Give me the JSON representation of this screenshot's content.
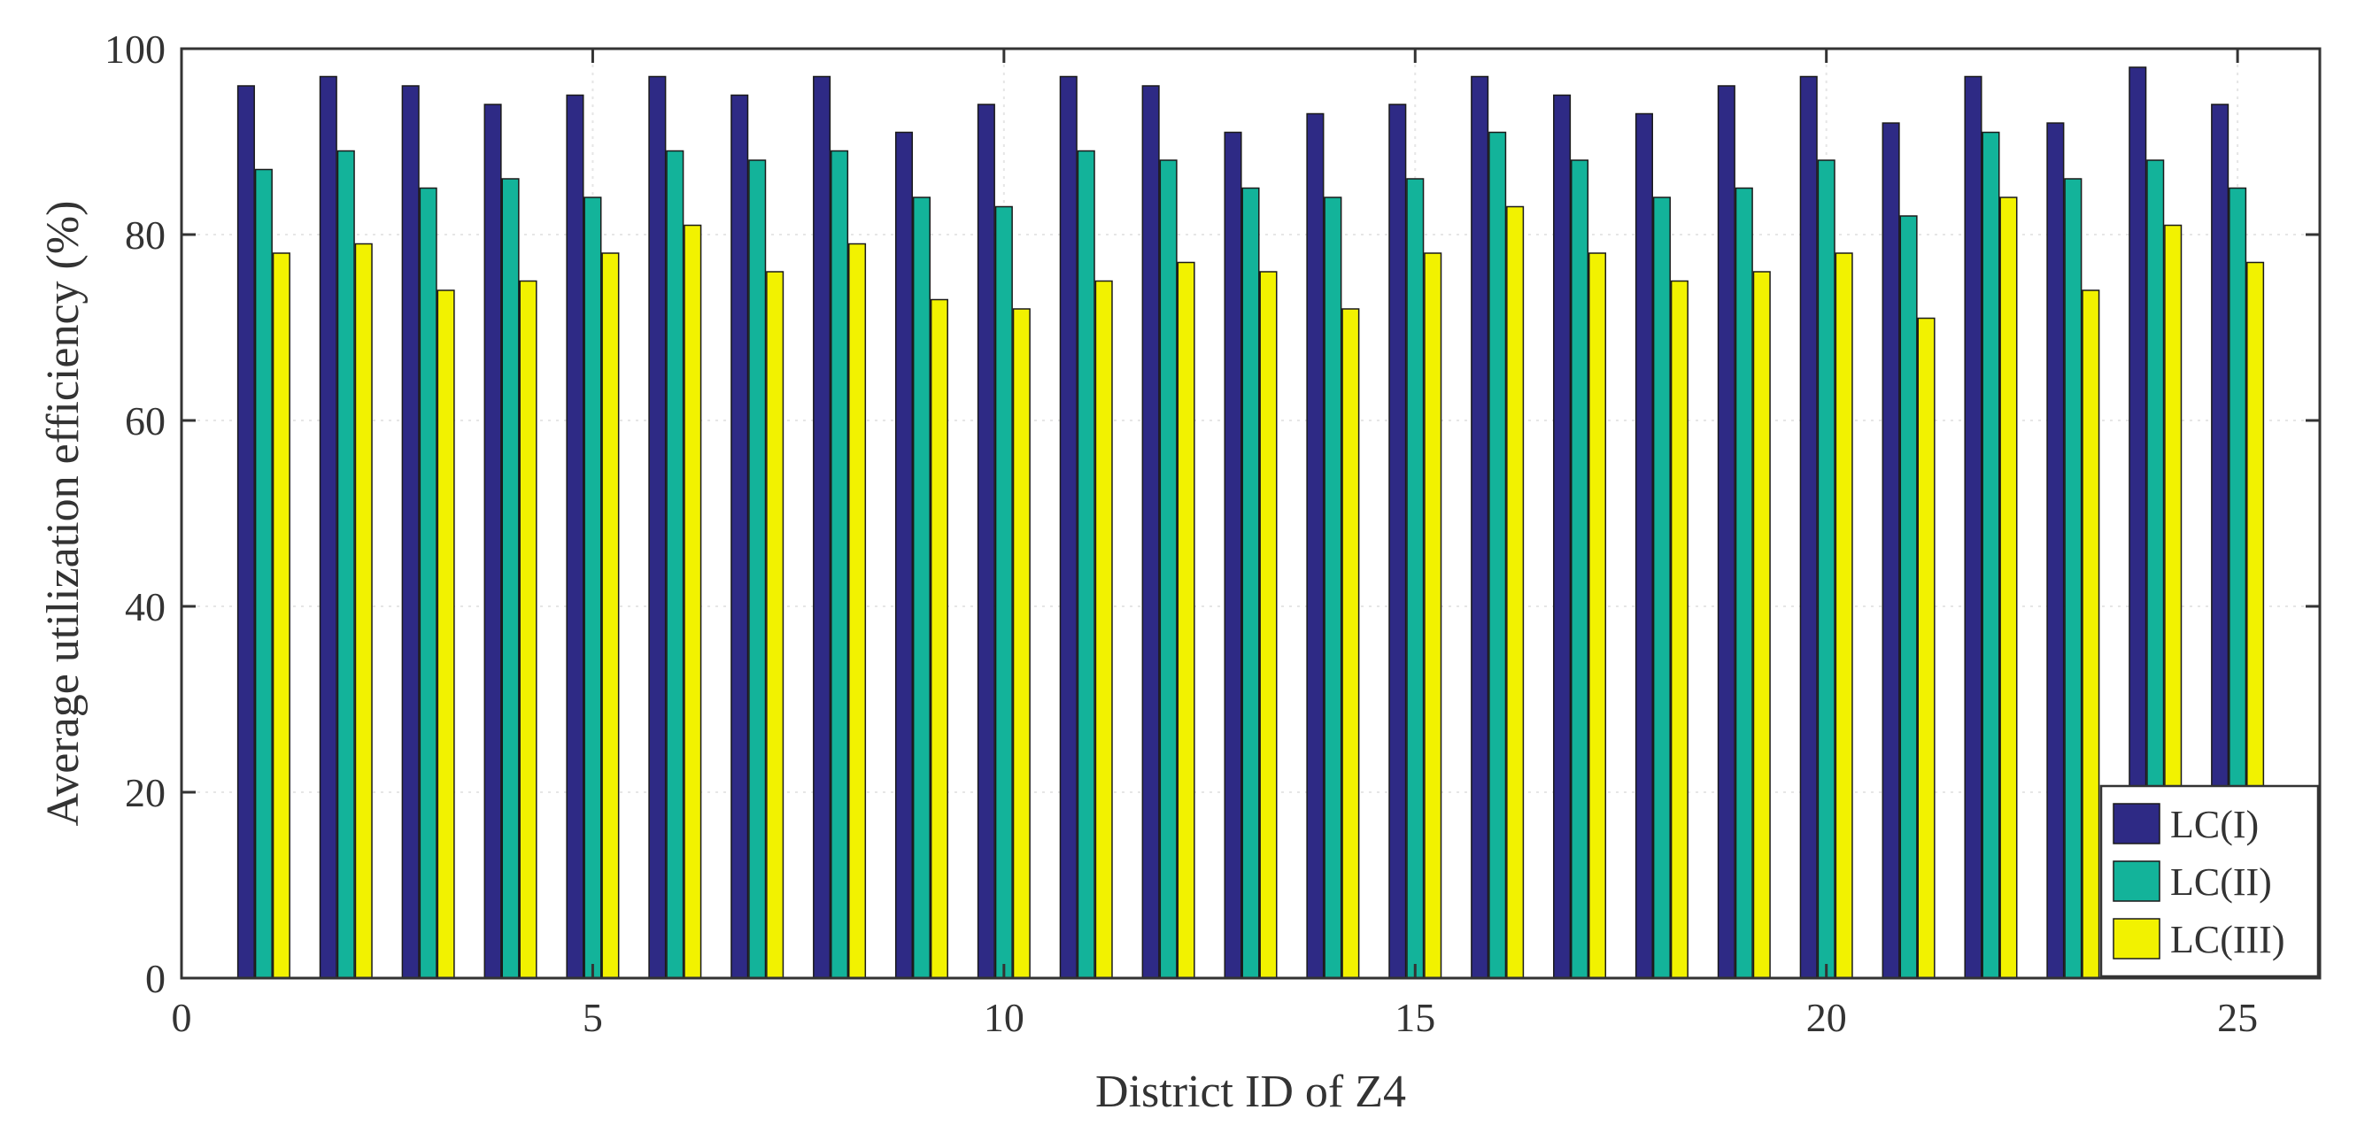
{
  "chart_data": {
    "type": "bar",
    "xlabel": "District ID of Z4",
    "ylabel": "Average utilization efficiency (%)",
    "xlim": [
      0,
      26
    ],
    "ylim": [
      0,
      100
    ],
    "xticks": [
      "0",
      "5",
      "10",
      "15",
      "20",
      "25"
    ],
    "yticks": [
      "0",
      "20",
      "40",
      "60",
      "80",
      "100"
    ],
    "grid": true,
    "legend_position": "bottom-right",
    "categories": [
      1,
      2,
      3,
      4,
      5,
      6,
      7,
      8,
      9,
      10,
      11,
      12,
      13,
      14,
      15,
      16,
      17,
      18,
      19,
      20,
      21,
      22,
      23,
      24,
      25
    ],
    "series": [
      {
        "name": "LC(I)",
        "color": "#2e2a85",
        "values": [
          96,
          97,
          96,
          94,
          95,
          97,
          95,
          97,
          91,
          94,
          97,
          96,
          91,
          93,
          94,
          97,
          95,
          93,
          96,
          97,
          92,
          97,
          92,
          98,
          94
        ]
      },
      {
        "name": "LC(II)",
        "color": "#13b39a",
        "values": [
          87,
          89,
          85,
          86,
          84,
          89,
          88,
          89,
          84,
          83,
          89,
          88,
          85,
          84,
          86,
          91,
          88,
          84,
          85,
          88,
          82,
          91,
          86,
          88,
          85
        ]
      },
      {
        "name": "LC(III)",
        "color": "#f2f200",
        "values": [
          78,
          79,
          74,
          75,
          78,
          81,
          76,
          79,
          73,
          72,
          75,
          77,
          76,
          72,
          78,
          83,
          78,
          75,
          76,
          78,
          71,
          84,
          74,
          81,
          77
        ]
      }
    ]
  }
}
